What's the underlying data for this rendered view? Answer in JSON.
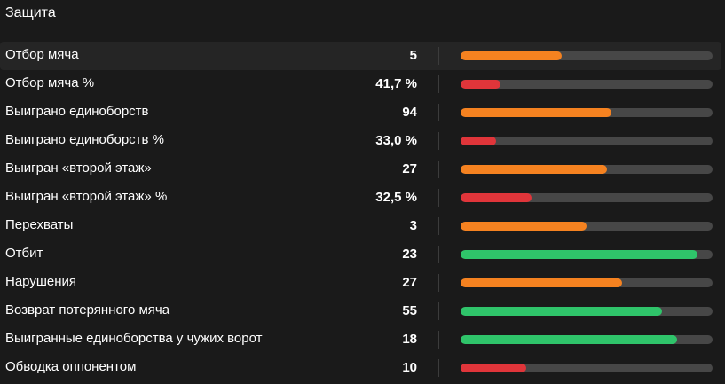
{
  "section": {
    "title": "Защита"
  },
  "colors": {
    "orange": "#f58220",
    "red": "#e0353a",
    "green": "#2fc46a",
    "track": "#474747"
  },
  "rows": [
    {
      "label": "Отбор мяча",
      "value": "5",
      "level": 0.4,
      "color": "orange"
    },
    {
      "label": "Отбор мяча %",
      "value": "41,7 %",
      "level": 0.16,
      "color": "red"
    },
    {
      "label": "Выиграно единоборств",
      "value": "94",
      "level": 0.6,
      "color": "orange"
    },
    {
      "label": "Выиграно единоборств %",
      "value": "33,0 %",
      "level": 0.14,
      "color": "red"
    },
    {
      "label": "Выигран «второй этаж»",
      "value": "27",
      "level": 0.58,
      "color": "orange"
    },
    {
      "label": "Выигран «второй этаж» %",
      "value": "32,5 %",
      "level": 0.28,
      "color": "red"
    },
    {
      "label": "Перехваты",
      "value": "3",
      "level": 0.5,
      "color": "orange"
    },
    {
      "label": "Отбит",
      "value": "23",
      "level": 0.94,
      "color": "green"
    },
    {
      "label": "Нарушения",
      "value": "27",
      "level": 0.64,
      "color": "orange"
    },
    {
      "label": "Возврат потерянного мяча",
      "value": "55",
      "level": 0.8,
      "color": "green"
    },
    {
      "label": "Выигранные единоборства у чужих ворот",
      "value": "18",
      "level": 0.86,
      "color": "green"
    },
    {
      "label": "Обводка оппонентом",
      "value": "10",
      "level": 0.26,
      "color": "red"
    }
  ]
}
